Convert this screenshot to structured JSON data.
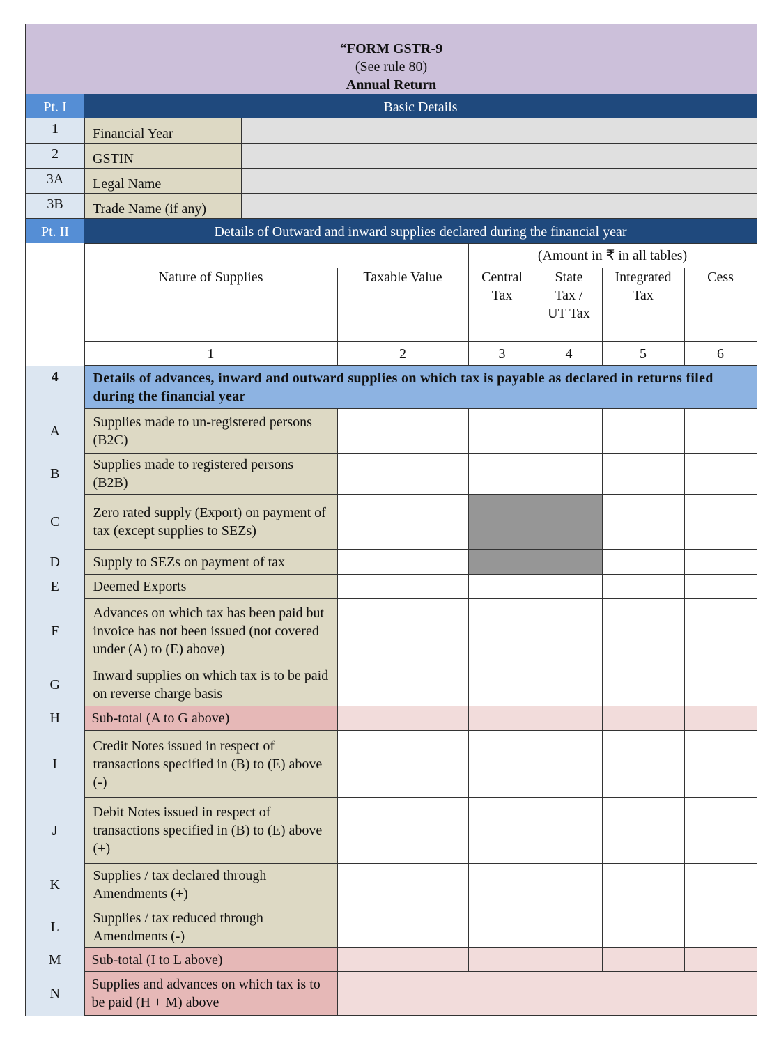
{
  "title": {
    "line1": "“FORM GSTR-9",
    "line2": "(See rule 80)",
    "line3": "Annual Return"
  },
  "part1": {
    "label": "Pt. I",
    "heading": "Basic Details",
    "rows": [
      {
        "no": "1",
        "label": "Financial Year",
        "value": ""
      },
      {
        "no": "2",
        "label": "GSTIN",
        "value": ""
      },
      {
        "no": "3A",
        "label": "Legal Name",
        "value": ""
      },
      {
        "no": "3B",
        "label": "Trade Name (if any)",
        "value": ""
      }
    ]
  },
  "part2": {
    "label": "Pt. II",
    "heading": "Details of Outward and inward supplies declared during the financial year",
    "amount_note": "(Amount in ₹ in all tables)",
    "columns": [
      "Nature of Supplies",
      "Taxable Value",
      "Central Tax",
      "State Tax / UT Tax",
      "Integrated Tax",
      "Cess"
    ],
    "column_numbers": [
      "1",
      "2",
      "3",
      "4",
      "5",
      "6"
    ],
    "section": {
      "no": "4",
      "heading": "Details of advances, inward and outward supplies on which tax is payable as declared in returns filed during the financial year"
    },
    "rows": [
      {
        "key": "A",
        "label": "Supplies made to un-registered persons (B2C)",
        "type": "normal",
        "height": 64
      },
      {
        "key": "B",
        "label": "Supplies made to registered persons (B2B)",
        "type": "normal",
        "height": 59
      },
      {
        "key": "C",
        "label": "Zero rated supply (Export) on payment of tax (except supplies to SEZs)",
        "type": "normal",
        "height": 79,
        "greyed": [
          "Central Tax",
          "State Tax / UT Tax"
        ]
      },
      {
        "key": "D",
        "label": "Supply to SEZs on payment of tax",
        "type": "normal",
        "height": 36,
        "greyed": [
          "Central Tax",
          "State Tax / UT Tax"
        ]
      },
      {
        "key": "E",
        "label": "Deemed Exports",
        "type": "normal",
        "height": 35
      },
      {
        "key": "F",
        "label": "Advances on which tax has been paid but invoice has not been issued (not covered under (A) to (E) above)",
        "type": "normal",
        "height": 92
      },
      {
        "key": "G",
        "label": "Inward supplies on which tax is to be paid on reverse charge basis",
        "type": "normal",
        "height": 62
      },
      {
        "key": "H",
        "label": "Sub-total (A to G above)",
        "type": "subtotal",
        "height": 35
      },
      {
        "key": "I",
        "label": "Credit Notes issued in respect of transactions specified in (B) to (E) above (-)",
        "type": "normal",
        "height": 96
      },
      {
        "key": "J",
        "label": "Debit Notes issued in respect of transactions specified in (B) to (E) above (+)",
        "type": "normal",
        "height": 95
      },
      {
        "key": "K",
        "label": "Supplies / tax declared through Amendments (+)",
        "type": "normal",
        "height": 61
      },
      {
        "key": "L",
        "label": "Supplies / tax reduced through Amendments (-)",
        "type": "normal",
        "height": 60
      },
      {
        "key": "M",
        "label": "Sub-total (I to L above)",
        "type": "subtotal",
        "height": 34
      },
      {
        "key": "N",
        "label": "Supplies and advances on which tax is to be paid (H + M) above",
        "type": "total",
        "height": 63
      }
    ]
  },
  "colors": {
    "title_bg": "#ccc0da",
    "part_bar": "#1f497d",
    "part_label": "#558ed5",
    "section_bg": "#8db3e2",
    "label_bg": "#ddd9c4",
    "key_bg": "#dce6f1",
    "subtotal": "#e6b8b7",
    "subtotal_value": "#f2dcdb",
    "greyed": "#969696"
  }
}
